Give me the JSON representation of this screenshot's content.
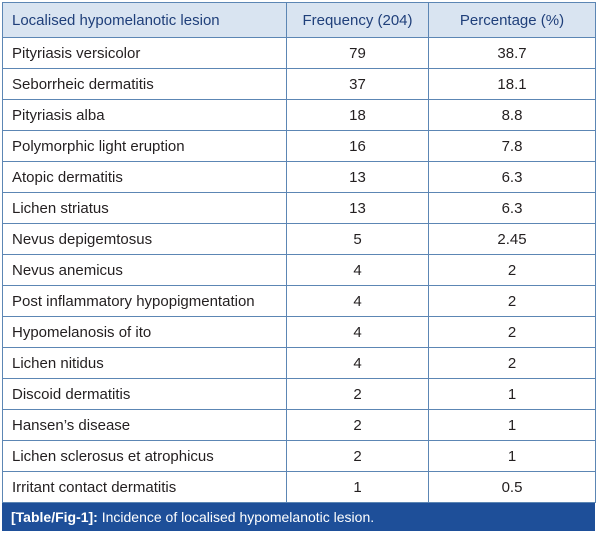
{
  "table": {
    "headers": [
      "Localised hypomelanotic lesion",
      "Frequency (204)",
      "Percentage (%)"
    ],
    "rows": [
      [
        "Pityriasis versicolor",
        "79",
        "38.7"
      ],
      [
        "Seborrheic dermatitis",
        "37",
        "18.1"
      ],
      [
        "Pityriasis alba",
        "18",
        "8.8"
      ],
      [
        "Polymorphic light eruption",
        "16",
        "7.8"
      ],
      [
        "Atopic dermatitis",
        "13",
        "6.3"
      ],
      [
        "Lichen striatus",
        "13",
        "6.3"
      ],
      [
        "Nevus depigemtosus",
        "5",
        "2.45"
      ],
      [
        "Nevus anemicus",
        "4",
        "2"
      ],
      [
        "Post inflammatory hypopigmentation",
        "4",
        "2"
      ],
      [
        "Hypomelanosis of ito",
        "4",
        "2"
      ],
      [
        "Lichen nitidus",
        "4",
        "2"
      ],
      [
        "Discoid dermatitis",
        "2",
        "1"
      ],
      [
        "Hansen’s disease",
        "2",
        "1"
      ],
      [
        "Lichen sclerosus et atrophicus",
        "2",
        "1"
      ],
      [
        "Irritant contact dermatitis",
        "1",
        "0.5"
      ]
    ]
  },
  "caption": {
    "label": "[Table/Fig-1]:",
    "text": " Incidence of localised hypomelanotic lesion."
  },
  "colors": {
    "header_bg": "#d9e4f1",
    "border": "#5c86b4",
    "caption_bg": "#1e4f99"
  }
}
